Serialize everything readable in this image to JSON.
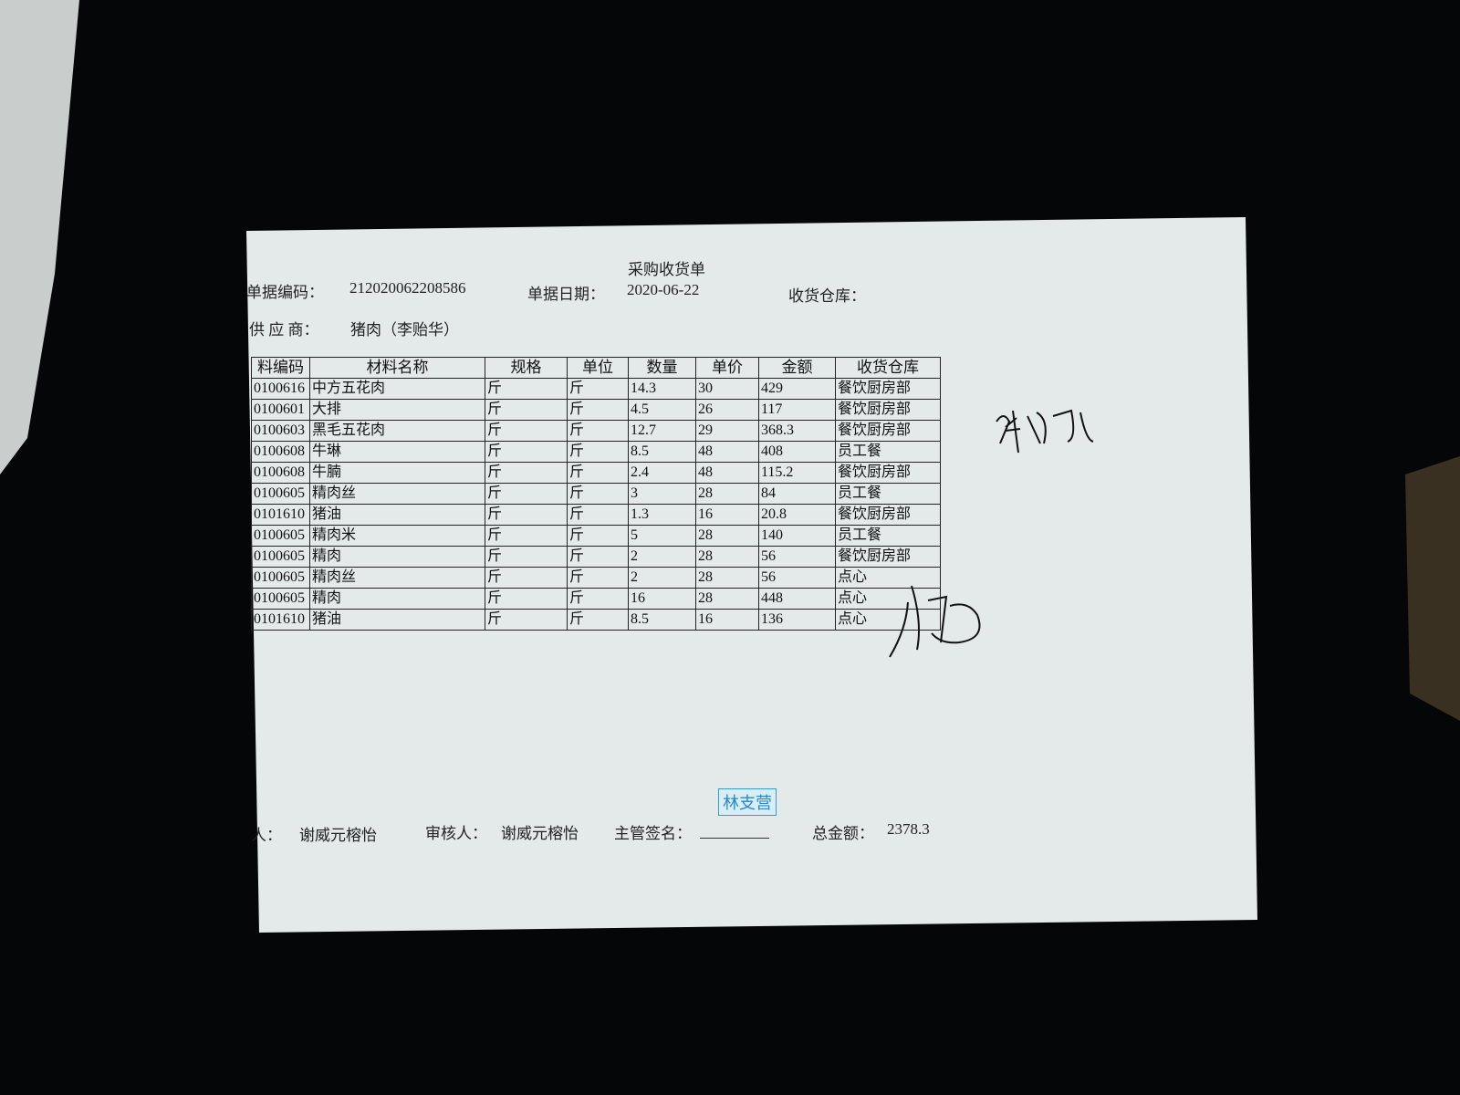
{
  "header": {
    "title": "采购收货单",
    "doc_no_label": "单据编码：",
    "doc_no": "212020062208586",
    "doc_date_label": "单据日期：",
    "doc_date": "2020-06-22",
    "warehouse_label": "收货仓库：",
    "supplier_label": "供 应 商：",
    "supplier": "猪肉（李贻华）"
  },
  "table": {
    "columns": [
      "料编码",
      "材料名称",
      "规格",
      "单位",
      "数量",
      "单价",
      "金额",
      "收货仓库"
    ],
    "rows": [
      [
        "0100616",
        "中方五花肉",
        "斤",
        "斤",
        14.3,
        30,
        429,
        "餐饮厨房部"
      ],
      [
        "0100601",
        "大排",
        "斤",
        "斤",
        4.5,
        26,
        117,
        "餐饮厨房部"
      ],
      [
        "0100603",
        "黑毛五花肉",
        "斤",
        "斤",
        12.7,
        29,
        368.3,
        "餐饮厨房部"
      ],
      [
        "0100608",
        "牛琳",
        "斤",
        "斤",
        8.5,
        48,
        408,
        "员工餐"
      ],
      [
        "0100608",
        "牛腩",
        "斤",
        "斤",
        2.4,
        48,
        115.2,
        "餐饮厨房部"
      ],
      [
        "0100605",
        "精肉丝",
        "斤",
        "斤",
        3,
        28,
        84,
        "员工餐"
      ],
      [
        "0101610",
        "猪油",
        "斤",
        "斤",
        1.3,
        16,
        20.8,
        "餐饮厨房部"
      ],
      [
        "0100605",
        "精肉米",
        "斤",
        "斤",
        5,
        28,
        140,
        "员工餐"
      ],
      [
        "0100605",
        "精肉",
        "斤",
        "斤",
        2,
        28,
        56,
        "餐饮厨房部"
      ],
      [
        "0100605",
        "精肉丝",
        "斤",
        "斤",
        2,
        28,
        56,
        "点心"
      ],
      [
        "0100605",
        "精肉",
        "斤",
        "斤",
        16,
        28,
        448,
        "点心"
      ],
      [
        "0101610",
        "猪油",
        "斤",
        "斤",
        8.5,
        16,
        136,
        "点心"
      ]
    ]
  },
  "footer": {
    "maker_label": "人：",
    "maker": "谢威元榕怡",
    "reviewer_label": "审核人：",
    "reviewer": "谢威元榕怡",
    "supervisor_label": "主管签名：",
    "total_label": "总金额：",
    "total": 2378.3
  },
  "stamp": "林支营"
}
